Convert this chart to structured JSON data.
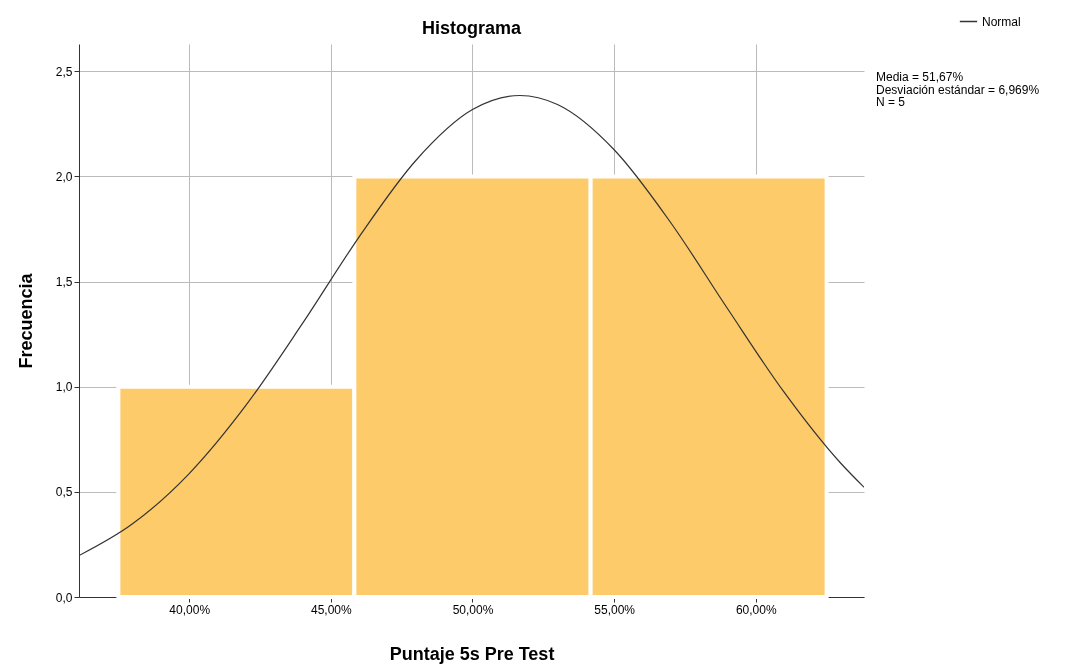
{
  "chart_data": {
    "type": "histogram",
    "title": "Histograma",
    "xlabel": "Puntaje 5s Pre Test",
    "ylabel": "Frecuencia",
    "series": [
      {
        "bins": [
          37.5,
          45.83,
          54.17,
          62.5
        ],
        "values": [
          1,
          2,
          2
        ],
        "color": "#fdcb6a"
      },
      {
        "name": "Normal",
        "type": "line",
        "color": "#333333",
        "x": [
          36.11,
          38,
          40,
          42,
          44,
          46,
          48,
          50,
          51.67,
          53,
          55,
          57,
          59,
          61,
          63,
          63.82
        ],
        "values": [
          0.197,
          0.348,
          0.587,
          0.911,
          1.301,
          1.713,
          2.076,
          2.318,
          2.385,
          2.342,
          2.127,
          1.78,
          1.372,
          0.974,
          0.636,
          0.522
        ]
      }
    ],
    "xlim": [
      36.11,
      63.82
    ],
    "xticks": [
      {
        "value": 40,
        "label": "40,00%"
      },
      {
        "value": 45,
        "label": "45,00%"
      },
      {
        "value": 50,
        "label": "50,00%"
      },
      {
        "value": 55,
        "label": "55,00%"
      },
      {
        "value": 60,
        "label": "60,00%"
      }
    ],
    "ylim": [
      0,
      2.63
    ],
    "yticks": [
      {
        "value": 0,
        "label": "0,0"
      },
      {
        "value": 0.5,
        "label": "0,5"
      },
      {
        "value": 1,
        "label": "1,0"
      },
      {
        "value": 1.5,
        "label": "1,5"
      },
      {
        "value": 2,
        "label": "2,0"
      },
      {
        "value": 2.5,
        "label": "2,5"
      }
    ],
    "grid": true,
    "legend": "top right",
    "annotations": [
      "Media = 51,67%",
      "Desviación estándar = 6,969%",
      "N = 5"
    ]
  }
}
